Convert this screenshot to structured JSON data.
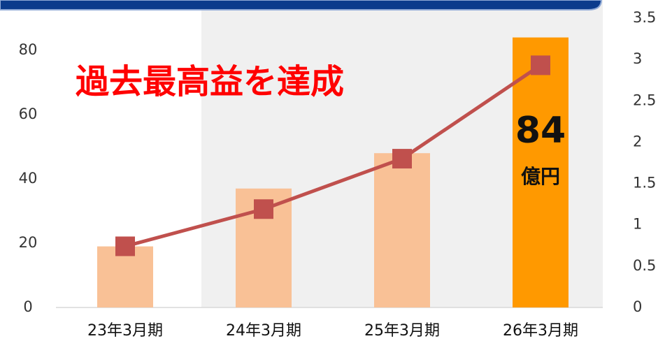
{
  "chart_data": {
    "type": "bar+line",
    "annotation": "過去最高益を達成",
    "unit": "億円",
    "categories": [
      "23年3月期",
      "24年3月期",
      "25年3月期",
      "26年3月期"
    ],
    "series": [
      {
        "type": "bar",
        "colors": [
          "#f9c196",
          "#f9c196",
          "#f9c196",
          "#ff9900"
        ],
        "values": [
          19,
          37,
          48,
          84
        ]
      },
      {
        "type": "line",
        "axis": "y2",
        "color": "#c0504d",
        "values": [
          0.74,
          1.19,
          1.8,
          2.93
        ]
      }
    ],
    "ylim": [
      0,
      90
    ],
    "yticks": [
      0,
      20,
      40,
      60,
      80
    ],
    "y2lim": [
      0,
      3.5
    ],
    "y2ticks": [
      0,
      0.5,
      1,
      1.5,
      2,
      2.5,
      3,
      3.5
    ]
  }
}
